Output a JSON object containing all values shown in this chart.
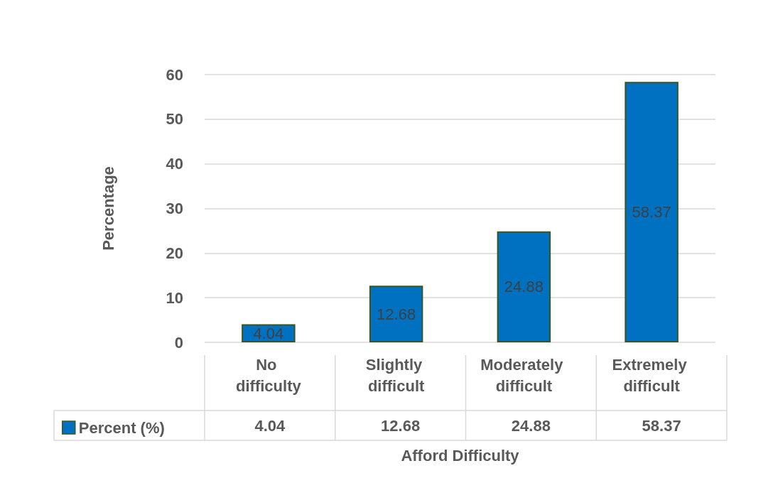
{
  "chart_data": {
    "type": "bar",
    "xlabel": "Afford Difficulty",
    "ylabel": "Percentage",
    "categories": [
      "No difficulty",
      "Slightly difficult",
      "Moderately difficult",
      "Extremely difficult"
    ],
    "series": [
      {
        "name": "Percent (%)",
        "color": "#0070c0",
        "values": [
          4.04,
          12.68,
          24.88,
          58.37
        ],
        "value_labels": [
          "4.04",
          "12.68",
          "24.88",
          "58.37"
        ]
      }
    ],
    "ylim": [
      0,
      60
    ],
    "yticks": [
      0,
      10,
      20,
      30,
      40,
      50,
      60
    ],
    "grid": "y",
    "data_labels": true,
    "legend": "bottom left"
  }
}
